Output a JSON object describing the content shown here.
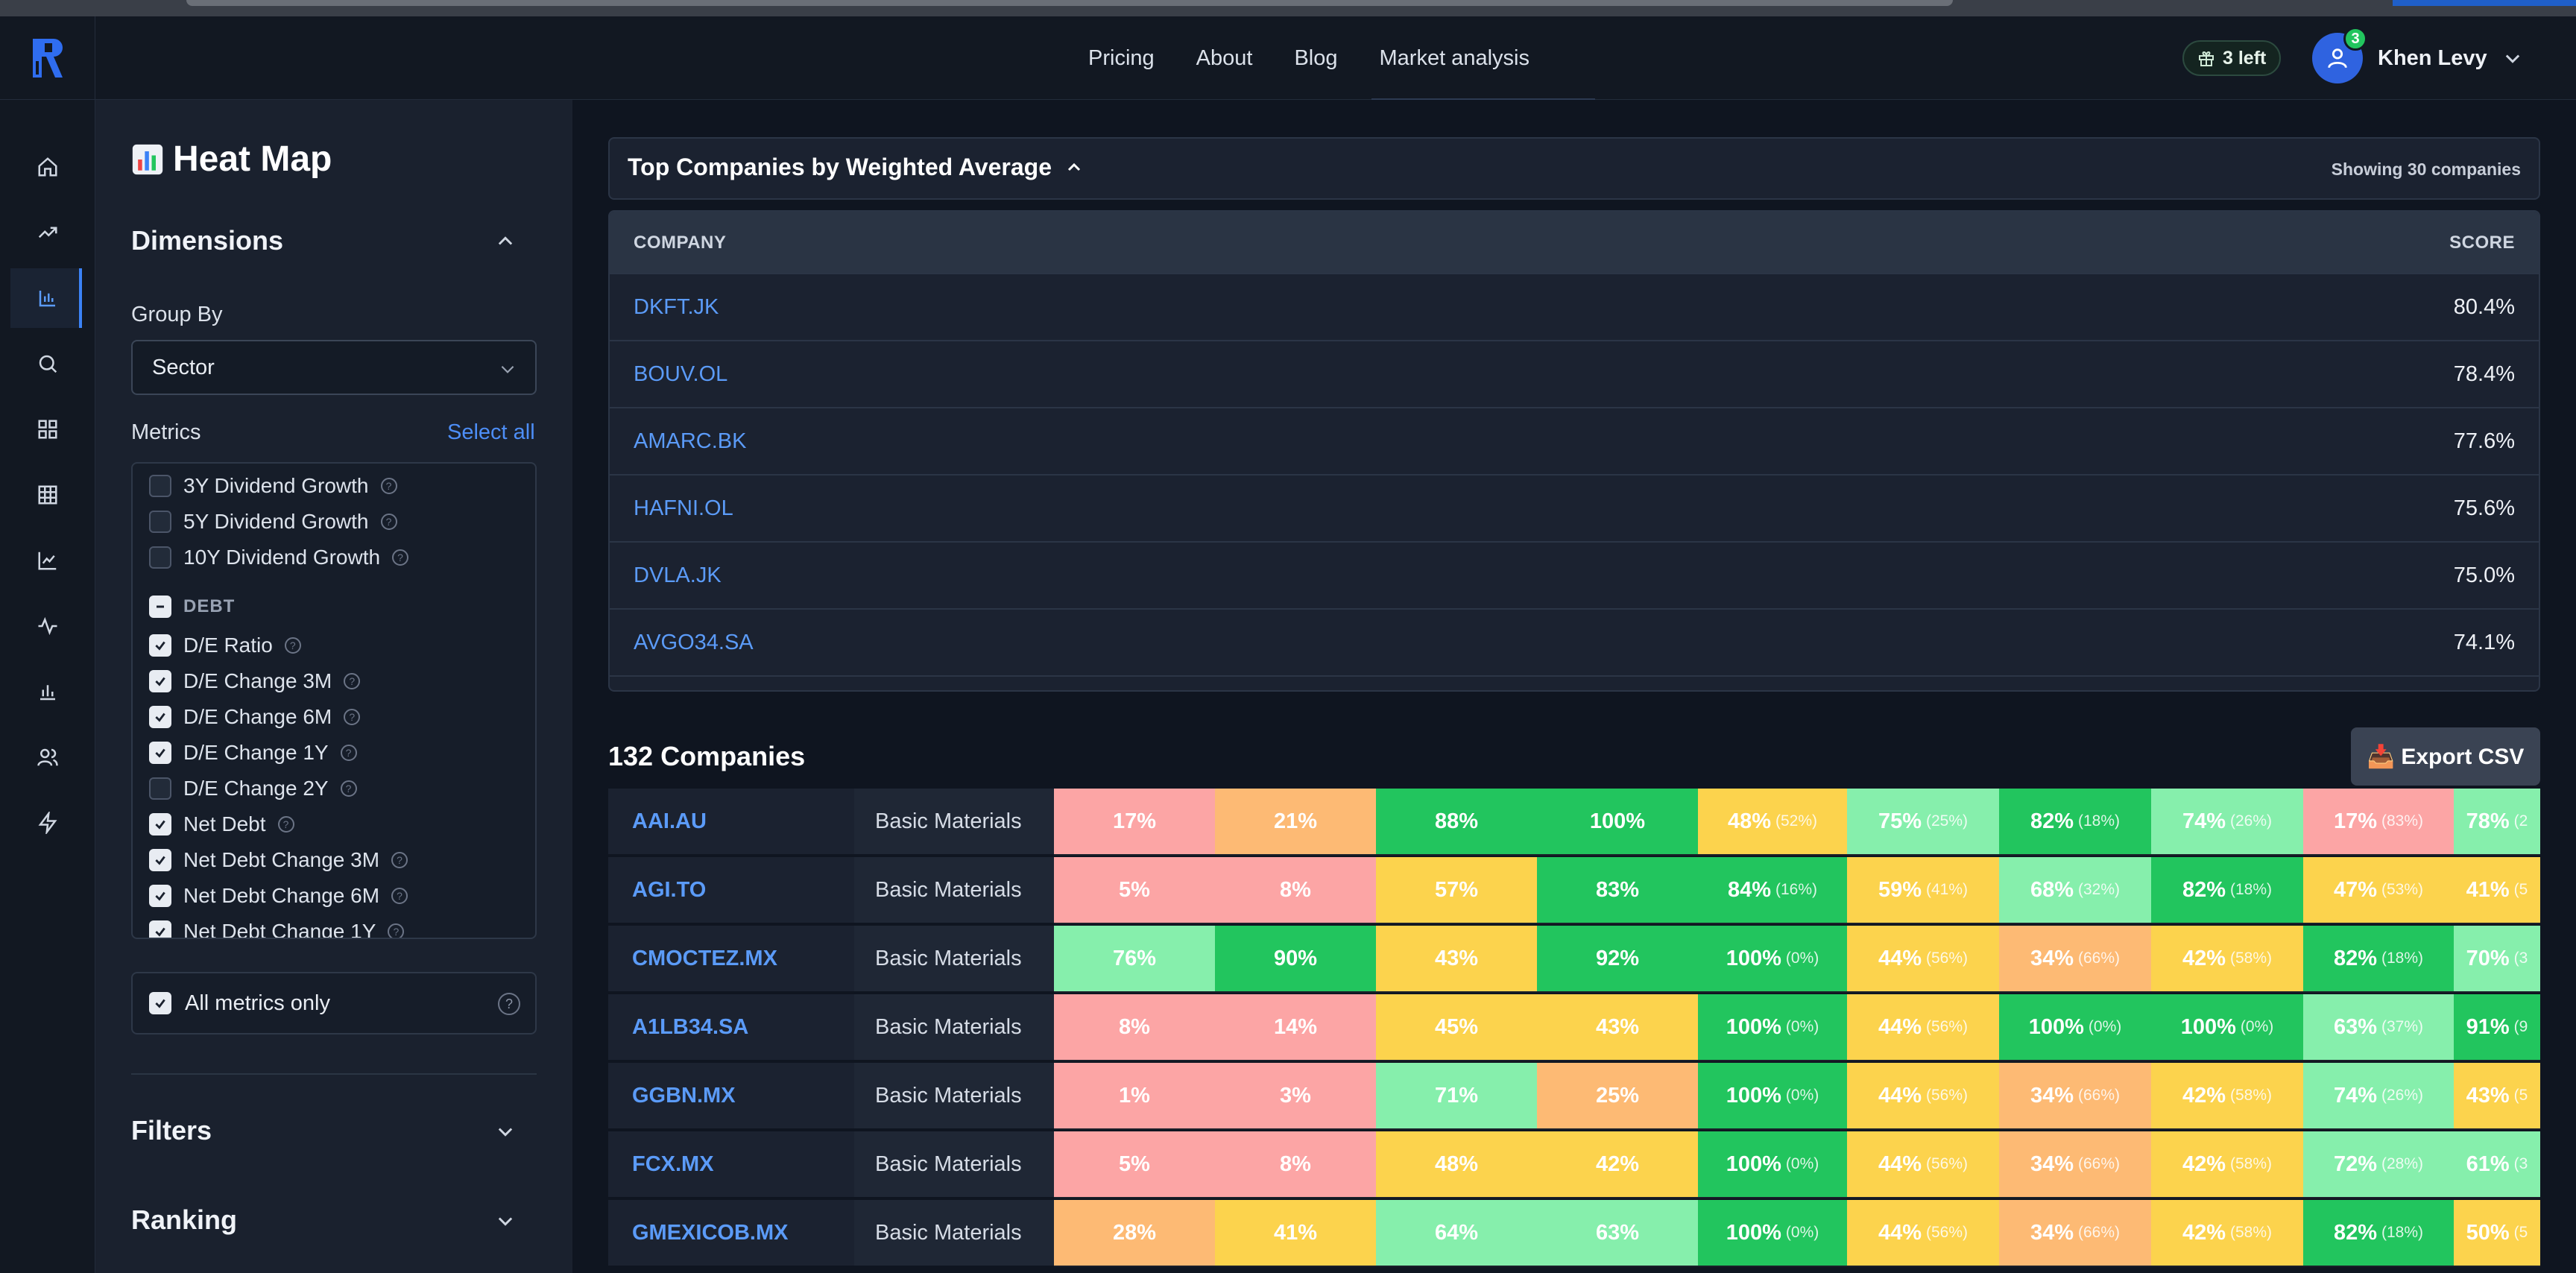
{
  "nav": {
    "links": [
      "Pricing",
      "About",
      "Blog",
      "Market analysis"
    ],
    "credits": "3 left",
    "user_name": "Khen Levy",
    "notification_count": "3"
  },
  "sidebar": {
    "title": "Heat Map",
    "dimensions_label": "Dimensions",
    "group_by_label": "Group By",
    "group_by_value": "Sector",
    "metrics_label": "Metrics",
    "select_all": "Select all",
    "metrics": [
      {
        "label": "3Y Dividend Growth",
        "checked": false
      },
      {
        "label": "5Y Dividend Growth",
        "checked": false
      },
      {
        "label": "10Y Dividend Growth",
        "checked": false
      }
    ],
    "debt_group": "DEBT",
    "debt_metrics": [
      {
        "label": "D/E Ratio",
        "checked": true
      },
      {
        "label": "D/E Change 3M",
        "checked": true
      },
      {
        "label": "D/E Change 6M",
        "checked": true
      },
      {
        "label": "D/E Change 1Y",
        "checked": true
      },
      {
        "label": "D/E Change 2Y",
        "checked": false
      },
      {
        "label": "Net Debt",
        "checked": true
      },
      {
        "label": "Net Debt Change 3M",
        "checked": true
      },
      {
        "label": "Net Debt Change 6M",
        "checked": true
      },
      {
        "label": "Net Debt Change 1Y",
        "checked": true
      }
    ],
    "all_metrics_only": "All metrics only",
    "filters_label": "Filters",
    "ranking_label": "Ranking"
  },
  "top": {
    "title": "Top Companies by Weighted Average",
    "showing": "Showing 30 companies",
    "col_company": "COMPANY",
    "col_score": "SCORE",
    "rows": [
      {
        "company": "DKFT.JK",
        "score": "80.4%"
      },
      {
        "company": "BOUV.OL",
        "score": "78.4%"
      },
      {
        "company": "AMARC.BK",
        "score": "77.6%"
      },
      {
        "company": "HAFNI.OL",
        "score": "75.6%"
      },
      {
        "company": "DVLA.JK",
        "score": "75.0%"
      },
      {
        "company": "AVGO34.SA",
        "score": "74.1%"
      }
    ]
  },
  "heatmap": {
    "title": "132 Companies",
    "export_label": "📥 Export CSV",
    "colors": {
      "red": "#fca5a5",
      "orange": "#fdba74",
      "yellow": "#fcd34d",
      "lightgreen": "#86efac",
      "green": "#22c55e"
    },
    "rows": [
      {
        "company": "AAI.AU",
        "sector": "Basic Materials",
        "cells": [
          {
            "v": "17%",
            "c": "red"
          },
          {
            "v": "21%",
            "c": "orange"
          },
          {
            "v": "88%",
            "c": "green"
          },
          {
            "v": "100%",
            "c": "green"
          },
          {
            "v": "48%",
            "s": "(52%)",
            "c": "yellow"
          },
          {
            "v": "75%",
            "s": "(25%)",
            "c": "lightgreen"
          },
          {
            "v": "82%",
            "s": "(18%)",
            "c": "green"
          },
          {
            "v": "74%",
            "s": "(26%)",
            "c": "lightgreen"
          },
          {
            "v": "17%",
            "s": "(83%)",
            "c": "red"
          },
          {
            "v": "78%",
            "s": "(2",
            "c": "lightgreen"
          }
        ]
      },
      {
        "company": "AGI.TO",
        "sector": "Basic Materials",
        "cells": [
          {
            "v": "5%",
            "c": "red"
          },
          {
            "v": "8%",
            "c": "red"
          },
          {
            "v": "57%",
            "c": "yellow"
          },
          {
            "v": "83%",
            "c": "green"
          },
          {
            "v": "84%",
            "s": "(16%)",
            "c": "green"
          },
          {
            "v": "59%",
            "s": "(41%)",
            "c": "yellow"
          },
          {
            "v": "68%",
            "s": "(32%)",
            "c": "lightgreen"
          },
          {
            "v": "82%",
            "s": "(18%)",
            "c": "green"
          },
          {
            "v": "47%",
            "s": "(53%)",
            "c": "yellow"
          },
          {
            "v": "41%",
            "s": "(5",
            "c": "yellow"
          }
        ]
      },
      {
        "company": "CMOCTEZ.MX",
        "sector": "Basic Materials",
        "cells": [
          {
            "v": "76%",
            "c": "lightgreen"
          },
          {
            "v": "90%",
            "c": "green"
          },
          {
            "v": "43%",
            "c": "yellow"
          },
          {
            "v": "92%",
            "c": "green"
          },
          {
            "v": "100%",
            "s": "(0%)",
            "c": "green"
          },
          {
            "v": "44%",
            "s": "(56%)",
            "c": "yellow"
          },
          {
            "v": "34%",
            "s": "(66%)",
            "c": "orange"
          },
          {
            "v": "42%",
            "s": "(58%)",
            "c": "yellow"
          },
          {
            "v": "82%",
            "s": "(18%)",
            "c": "green"
          },
          {
            "v": "70%",
            "s": "(3",
            "c": "lightgreen"
          }
        ]
      },
      {
        "company": "A1LB34.SA",
        "sector": "Basic Materials",
        "cells": [
          {
            "v": "8%",
            "c": "red"
          },
          {
            "v": "14%",
            "c": "red"
          },
          {
            "v": "45%",
            "c": "yellow"
          },
          {
            "v": "43%",
            "c": "yellow"
          },
          {
            "v": "100%",
            "s": "(0%)",
            "c": "green"
          },
          {
            "v": "44%",
            "s": "(56%)",
            "c": "yellow"
          },
          {
            "v": "100%",
            "s": "(0%)",
            "c": "green"
          },
          {
            "v": "100%",
            "s": "(0%)",
            "c": "green"
          },
          {
            "v": "63%",
            "s": "(37%)",
            "c": "lightgreen"
          },
          {
            "v": "91%",
            "s": "(9",
            "c": "green"
          }
        ]
      },
      {
        "company": "GGBN.MX",
        "sector": "Basic Materials",
        "cells": [
          {
            "v": "1%",
            "c": "red"
          },
          {
            "v": "3%",
            "c": "red"
          },
          {
            "v": "71%",
            "c": "lightgreen"
          },
          {
            "v": "25%",
            "c": "orange"
          },
          {
            "v": "100%",
            "s": "(0%)",
            "c": "green"
          },
          {
            "v": "44%",
            "s": "(56%)",
            "c": "yellow"
          },
          {
            "v": "34%",
            "s": "(66%)",
            "c": "orange"
          },
          {
            "v": "42%",
            "s": "(58%)",
            "c": "yellow"
          },
          {
            "v": "74%",
            "s": "(26%)",
            "c": "lightgreen"
          },
          {
            "v": "43%",
            "s": "(5",
            "c": "yellow"
          }
        ]
      },
      {
        "company": "FCX.MX",
        "sector": "Basic Materials",
        "cells": [
          {
            "v": "5%",
            "c": "red"
          },
          {
            "v": "8%",
            "c": "red"
          },
          {
            "v": "48%",
            "c": "yellow"
          },
          {
            "v": "42%",
            "c": "yellow"
          },
          {
            "v": "100%",
            "s": "(0%)",
            "c": "green"
          },
          {
            "v": "44%",
            "s": "(56%)",
            "c": "yellow"
          },
          {
            "v": "34%",
            "s": "(66%)",
            "c": "orange"
          },
          {
            "v": "42%",
            "s": "(58%)",
            "c": "yellow"
          },
          {
            "v": "72%",
            "s": "(28%)",
            "c": "lightgreen"
          },
          {
            "v": "61%",
            "s": "(3",
            "c": "lightgreen"
          }
        ]
      },
      {
        "company": "GMEXICOB.MX",
        "sector": "Basic Materials",
        "cells": [
          {
            "v": "28%",
            "c": "orange"
          },
          {
            "v": "41%",
            "c": "yellow"
          },
          {
            "v": "64%",
            "c": "lightgreen"
          },
          {
            "v": "63%",
            "c": "lightgreen"
          },
          {
            "v": "100%",
            "s": "(0%)",
            "c": "green"
          },
          {
            "v": "44%",
            "s": "(56%)",
            "c": "yellow"
          },
          {
            "v": "34%",
            "s": "(66%)",
            "c": "orange"
          },
          {
            "v": "42%",
            "s": "(58%)",
            "c": "yellow"
          },
          {
            "v": "82%",
            "s": "(18%)",
            "c": "green"
          },
          {
            "v": "50%",
            "s": "(5",
            "c": "yellow"
          }
        ]
      }
    ]
  }
}
